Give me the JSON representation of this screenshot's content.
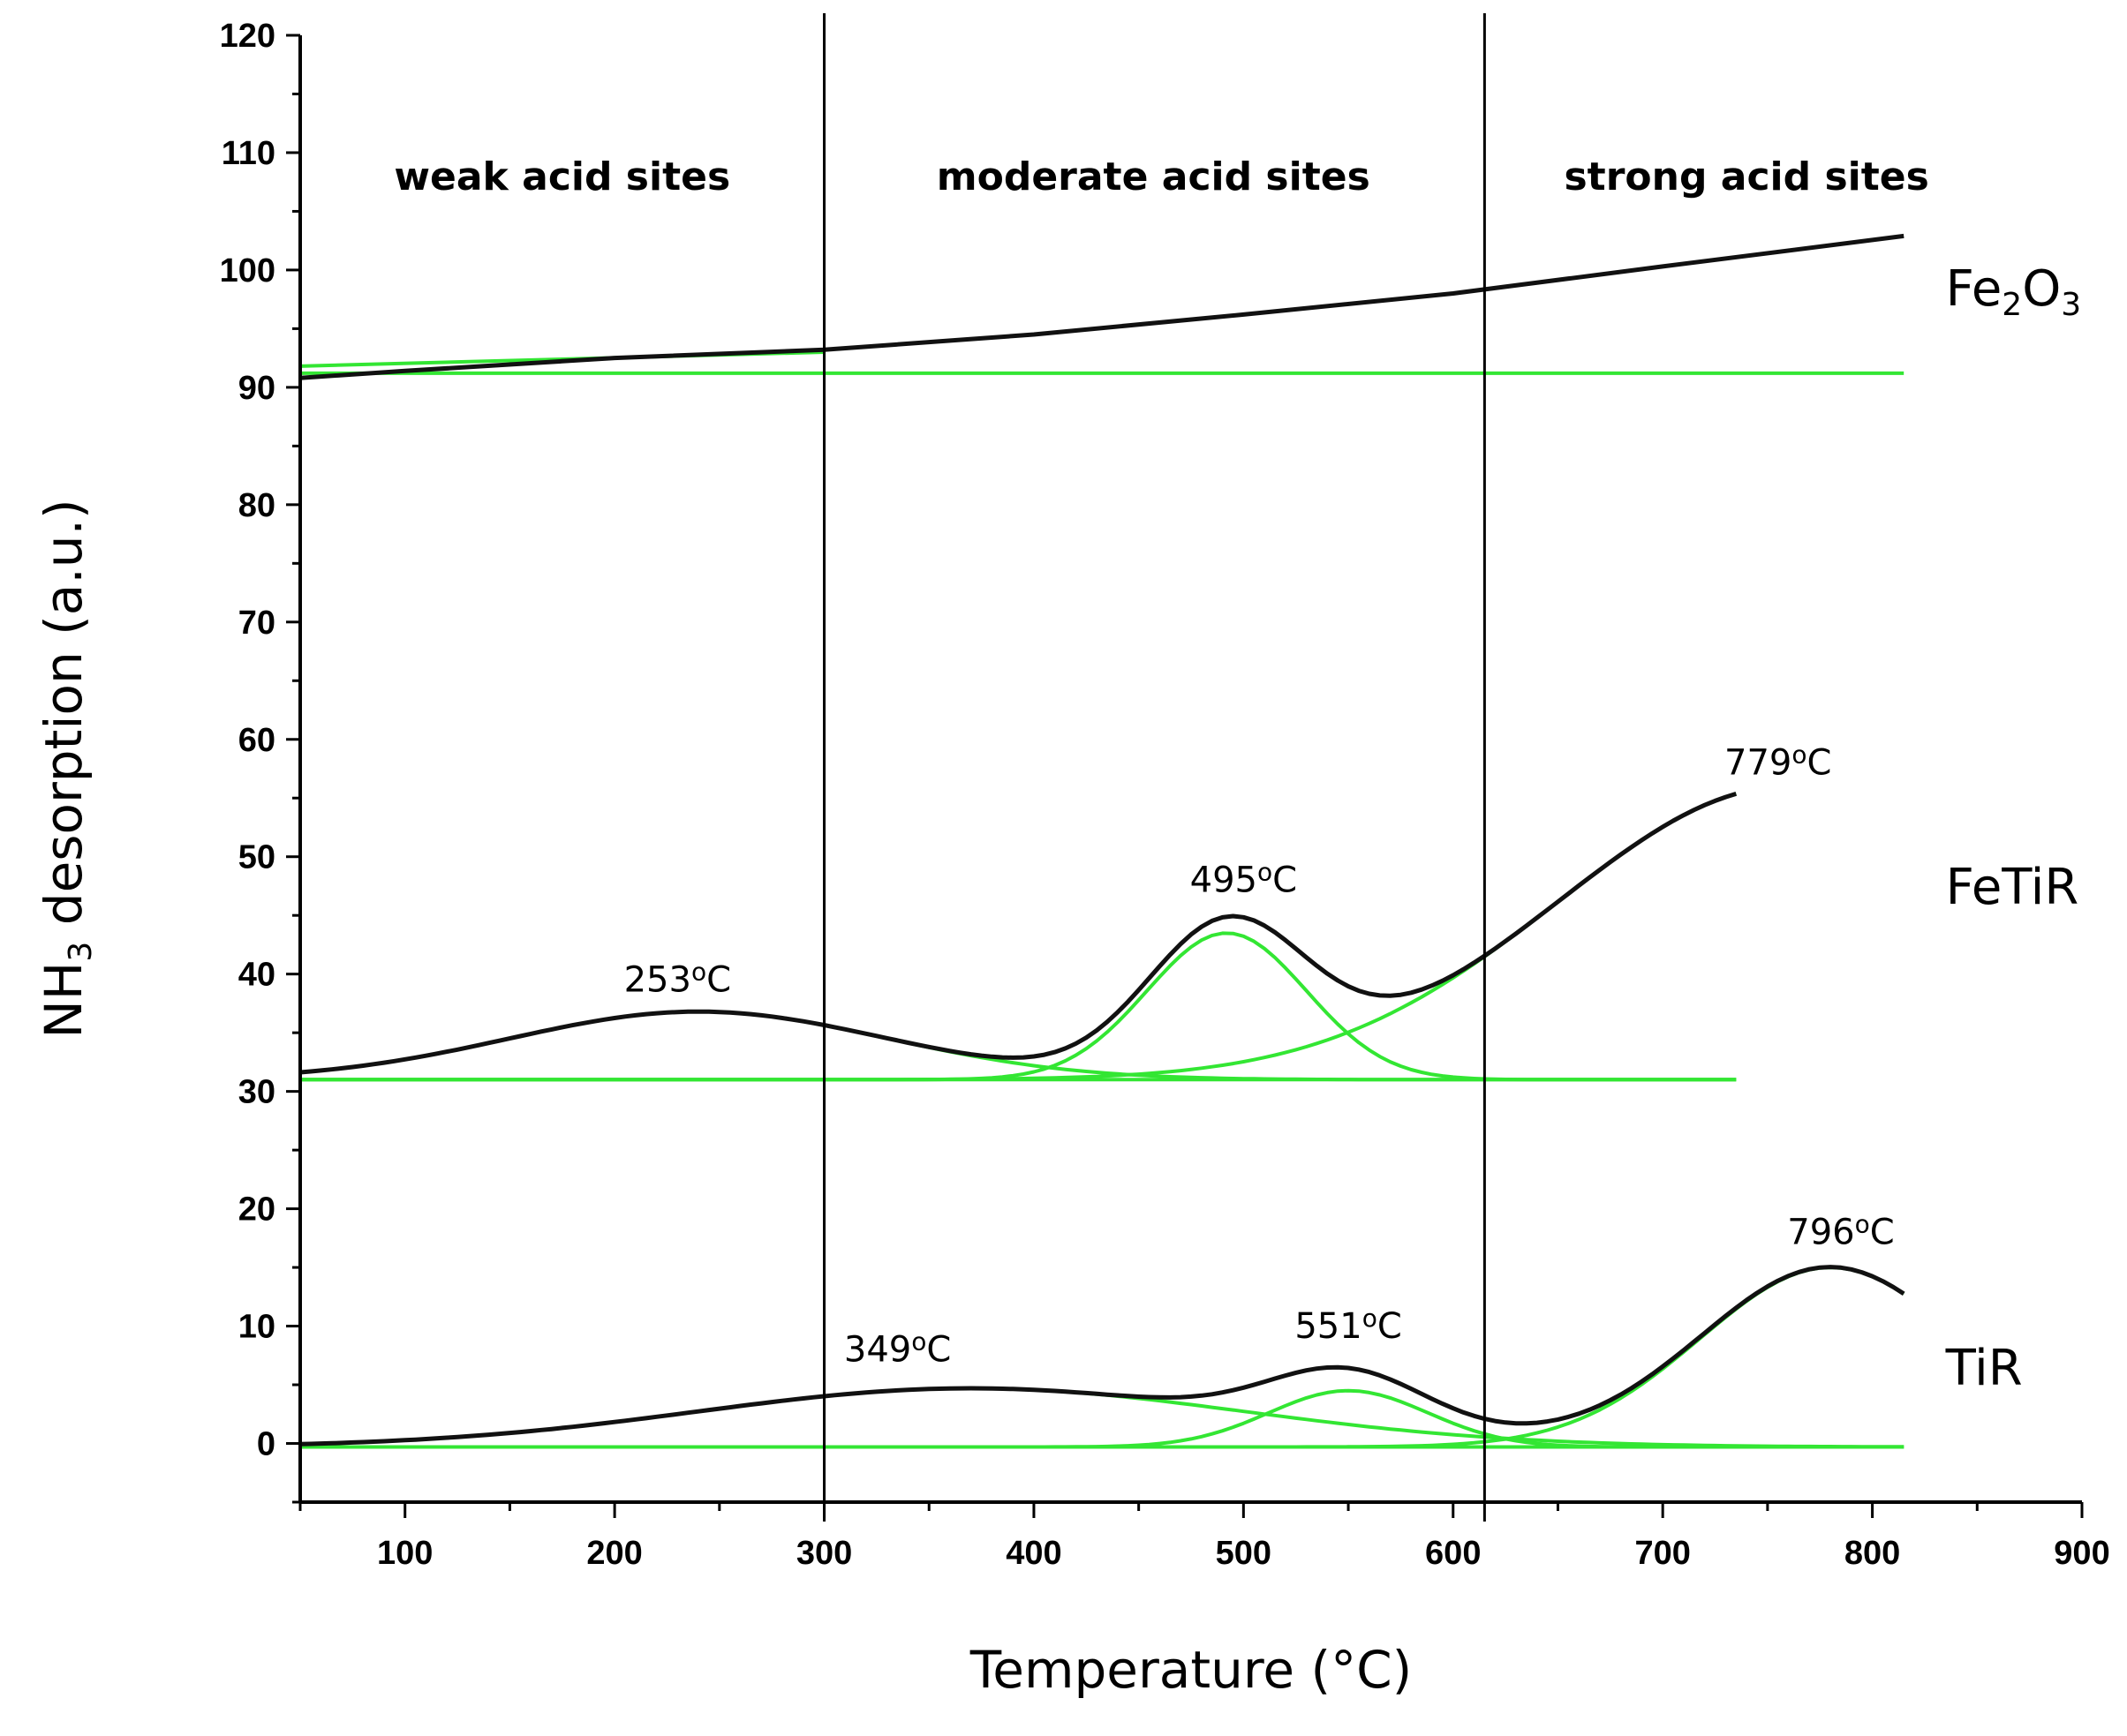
{
  "chart_data": {
    "type": "line",
    "title": "",
    "xlabel": "Temperature (°C)",
    "ylabel_parts": {
      "base": "NH",
      "sub": "3",
      "rest": " desorption (a.u.)"
    },
    "xlim": [
      50,
      900
    ],
    "ylim": [
      -5,
      120
    ],
    "x_ticks": [
      100,
      200,
      300,
      400,
      500,
      600,
      700,
      800,
      900
    ],
    "y_ticks": [
      0,
      10,
      20,
      30,
      40,
      50,
      60,
      70,
      80,
      90,
      100,
      110,
      120
    ],
    "dividers": [
      300,
      615
    ],
    "regions": [
      {
        "label": "weak acid sites",
        "x": 175
      },
      {
        "label": "moderate acid sites",
        "x": 457
      },
      {
        "label": "strong acid sites",
        "x": 740
      }
    ],
    "series_labels": [
      {
        "parts": {
          "base": "Fe",
          "sub1": "2",
          "mid": "O",
          "sub2": "3"
        },
        "x": 835,
        "y": 97
      },
      {
        "text": "FeTiR",
        "x": 835,
        "y": 46
      },
      {
        "text": "TiR",
        "x": 835,
        "y": 5
      }
    ],
    "peak_labels": [
      {
        "num": "253",
        "deg": "o",
        "unit": "C",
        "x": 230,
        "y": 38.5
      },
      {
        "num": "495",
        "deg": "o",
        "unit": "C",
        "x": 500,
        "y": 47
      },
      {
        "num": "779",
        "deg": "o",
        "unit": "C",
        "x": 755,
        "y": 57
      },
      {
        "num": "349",
        "deg": "o",
        "unit": "C",
        "x": 335,
        "y": 7
      },
      {
        "num": "551",
        "deg": "o",
        "unit": "C",
        "x": 550,
        "y": 9
      },
      {
        "num": "796",
        "deg": "o",
        "unit": "C",
        "x": 785,
        "y": 17
      }
    ],
    "series": [
      {
        "name": "Fe2O3",
        "points": [
          [
            50,
            90.8
          ],
          [
            100,
            91.4
          ],
          [
            200,
            92.5
          ],
          [
            300,
            93.2
          ],
          [
            400,
            94.5
          ],
          [
            500,
            96.2
          ],
          [
            600,
            98.0
          ],
          [
            700,
            100.3
          ],
          [
            815,
            102.9
          ]
        ],
        "baseline": 91.2,
        "fit_start": [
          [
            50,
            91.8
          ],
          [
            300,
            93.0
          ]
        ]
      },
      {
        "name": "FeTiR",
        "x_end": 735,
        "baseline": 31,
        "components": [
          {
            "center": 240,
            "amp": 5.8,
            "sigma": 90
          },
          {
            "center": 492,
            "amp": 12.5,
            "sigma": 38
          },
          {
            "center": 760,
            "amp": 25,
            "sigma": 110
          }
        ]
      },
      {
        "name": "TiR",
        "x_end": 815,
        "baseline": -0.3,
        "components": [
          {
            "center": 370,
            "amp": 5.0,
            "sigma": 130
          },
          {
            "center": 550,
            "amp": 4.8,
            "sigma": 38
          },
          {
            "center": 780,
            "amp": 15.3,
            "sigma": 62
          }
        ]
      }
    ]
  }
}
